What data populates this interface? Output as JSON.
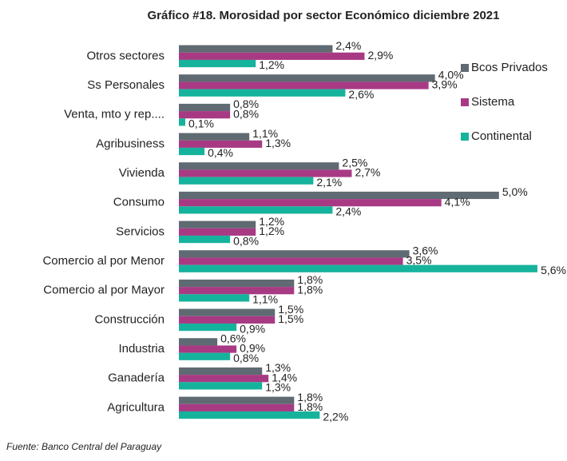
{
  "chart_data": {
    "type": "hbar",
    "title": "Gráfico #18. Morosidad por sector Económico diciembre 2021",
    "source": "Fuente: Banco Central del Paraguay",
    "categories": [
      "Otros sectores",
      "Ss Personales",
      "Venta, mto y rep....",
      "Agribusiness",
      "Vivienda",
      "Consumo",
      "Servicios",
      "Comercio al por Menor",
      "Comercio al por Mayor",
      "Construcción",
      "Industria",
      "Ganadería",
      "Agricultura"
    ],
    "series": [
      {
        "name": "Bcos Privados",
        "color": "#5f6a72",
        "values": [
          2.4,
          4.0,
          0.8,
          1.1,
          2.5,
          5.0,
          1.2,
          3.6,
          1.8,
          1.5,
          0.6,
          1.3,
          1.8
        ],
        "value_labels": [
          "2,4%",
          "4,0%",
          "0,8%",
          "1,1%",
          "2,5%",
          "5,0%",
          "1,2%",
          "3,6%",
          "1,8%",
          "1,5%",
          "0,6%",
          "1,3%",
          "1,8%"
        ]
      },
      {
        "name": "Sistema",
        "color": "#a83a84",
        "values": [
          2.9,
          3.9,
          0.8,
          1.3,
          2.7,
          4.1,
          1.2,
          3.5,
          1.8,
          1.5,
          0.9,
          1.4,
          1.8
        ],
        "value_labels": [
          "2,9%",
          "3,9%",
          "0,8%",
          "1,3%",
          "2,7%",
          "4,1%",
          "1,2%",
          "3,5%",
          "1,8%",
          "1,5%",
          "0,9%",
          "1,4%",
          "1,8%"
        ]
      },
      {
        "name": "Continental",
        "color": "#16b39c",
        "values": [
          1.2,
          2.6,
          0.1,
          0.4,
          2.1,
          2.4,
          0.8,
          5.6,
          1.1,
          0.9,
          0.8,
          1.3,
          2.2
        ],
        "value_labels": [
          "1,2%",
          "2,6%",
          "0,1%",
          "0,4%",
          "2,1%",
          "2,4%",
          "0,8%",
          "5,6%",
          "1,1%",
          "0,9%",
          "0,8%",
          "1,3%",
          "2,2%"
        ]
      }
    ],
    "xlim": [
      0,
      6
    ],
    "legend": "right"
  }
}
